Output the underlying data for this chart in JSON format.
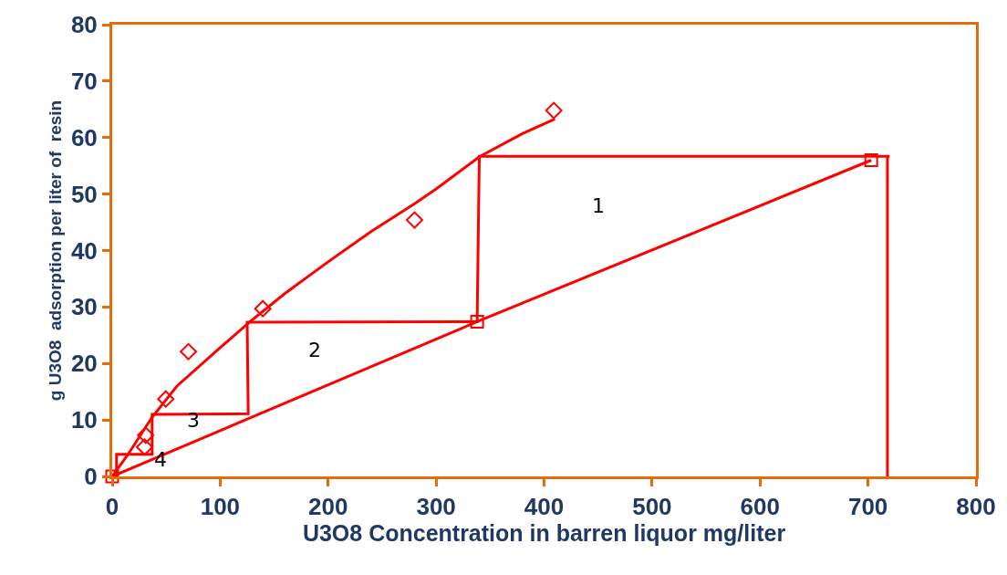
{
  "chart_data": {
    "type": "scatter",
    "xlabel": "U3O8 Concentration in barren liquor mg/liter",
    "ylabel": "g U3O8  adsorption per liter of  resin",
    "xlim": [
      0,
      800
    ],
    "xticks": [
      0,
      100,
      200,
      300,
      400,
      500,
      600,
      700,
      800
    ],
    "ylim": [
      0,
      80
    ],
    "yticks": [
      0,
      10,
      20,
      30,
      40,
      50,
      60,
      70,
      80
    ],
    "series": [
      {
        "marker": "diamond",
        "color": "#ff0000",
        "x": [
          30,
          31,
          49.6,
          70.6,
          139.5,
          280,
          409
        ],
        "values": [
          5.2,
          7.3,
          13.7,
          22.1,
          29.7,
          45.4,
          64.8
        ]
      },
      {
        "type": "line",
        "marker": "none",
        "color": "#ff0000",
        "x": [
          0,
          15,
          37,
          60,
          100,
          127,
          160,
          200,
          240,
          280,
          300,
          340,
          380,
          410
        ],
        "values": [
          0,
          4,
          10.5,
          16,
          22.8,
          27.3,
          32.4,
          38,
          43.4,
          48.3,
          50.9,
          56.6,
          60.7,
          63.3
        ]
      },
      {
        "type": "line",
        "marker": "square",
        "color": "#ff0000",
        "x": [
          0,
          338,
          703
        ],
        "values": [
          0,
          27.4,
          56
        ]
      },
      {
        "type": "line",
        "marker": "none",
        "color": "#ff0000",
        "x": [
          720,
          340,
          338,
          125,
          126,
          37,
          37,
          4,
          4
        ],
        "values": [
          56.7,
          56.7,
          27.4,
          27.3,
          11.1,
          11,
          3.9,
          3.9,
          0
        ]
      },
      {
        "type": "line",
        "marker": "none",
        "color": "#ff0000",
        "x": [
          718,
          718
        ],
        "values": [
          0,
          56.7
        ]
      }
    ],
    "annotations": [
      "1",
      "2",
      "3",
      "4"
    ]
  }
}
